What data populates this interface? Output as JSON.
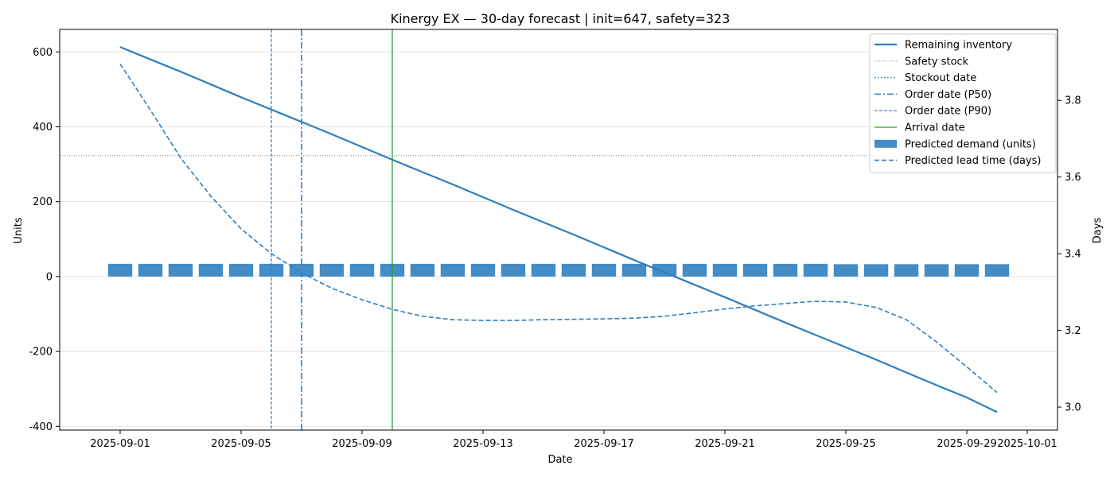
{
  "chart_data": {
    "type": "line",
    "title": "Kinergy EX — 30-day forecast | init=647, safety=323",
    "xlabel": "Date",
    "ylabel": "Units",
    "ylabel_right": "Days",
    "x_tick_labels": [
      "2025-09-01",
      "2025-09-05",
      "2025-09-09",
      "2025-09-13",
      "2025-09-17",
      "2025-09-21",
      "2025-09-25",
      "2025-09-29",
      "2025-10-01"
    ],
    "x_tick_dates": [
      "2025-09-01",
      "2025-09-05",
      "2025-09-09",
      "2025-09-13",
      "2025-09-17",
      "2025-09-21",
      "2025-09-25",
      "2025-09-29",
      "2025-10-01"
    ],
    "xlim": [
      "2025-08-30",
      "2025-10-02"
    ],
    "y_ticks": [
      -400,
      -200,
      0,
      200,
      400,
      600
    ],
    "ylim": [
      -410,
      660
    ],
    "y2_ticks": [
      3.0,
      3.2,
      3.4,
      3.6,
      3.8
    ],
    "y2lim": [
      2.94,
      3.985
    ],
    "grid": "horizontal",
    "legend_placement": "top-right",
    "dates": [
      "2025-09-01",
      "2025-09-02",
      "2025-09-03",
      "2025-09-04",
      "2025-09-05",
      "2025-09-06",
      "2025-09-07",
      "2025-09-08",
      "2025-09-09",
      "2025-09-10",
      "2025-09-11",
      "2025-09-12",
      "2025-09-13",
      "2025-09-14",
      "2025-09-15",
      "2025-09-16",
      "2025-09-17",
      "2025-09-18",
      "2025-09-19",
      "2025-09-20",
      "2025-09-21",
      "2025-09-22",
      "2025-09-23",
      "2025-09-24",
      "2025-09-25",
      "2025-09-26",
      "2025-09-27",
      "2025-09-28",
      "2025-09-29",
      "2025-09-30"
    ],
    "safety_stock": 323,
    "series": [
      {
        "name": "Remaining inventory",
        "kind": "line",
        "axis": "left",
        "color": "#2f7fbf",
        "values": [
          613,
          580,
          547,
          513,
          479,
          446,
          413,
          380,
          346,
          312,
          279,
          246,
          212,
          178,
          145,
          112,
          78,
          44,
          11,
          -22,
          -55,
          -89,
          -123,
          -156,
          -189,
          -222,
          -256,
          -290,
          -323,
          -362
        ]
      },
      {
        "name": "Predicted demand (units)",
        "kind": "bar",
        "axis": "left",
        "color": "#2f7fbf",
        "values": [
          34,
          34,
          34,
          34,
          34,
          34,
          34,
          34,
          34,
          34,
          34,
          34,
          34,
          34,
          34,
          34,
          34,
          34,
          34,
          34,
          34,
          34,
          34,
          34,
          33,
          33,
          33,
          33,
          33,
          33
        ]
      },
      {
        "name": "Predicted lead time (days)",
        "kind": "line",
        "axis": "right",
        "color": "#2f7fbf",
        "values": [
          3.895,
          3.775,
          3.65,
          3.55,
          3.465,
          3.4,
          3.35,
          3.31,
          3.28,
          3.255,
          3.237,
          3.228,
          3.226,
          3.226,
          3.228,
          3.229,
          3.23,
          3.232,
          3.237,
          3.246,
          3.256,
          3.264,
          3.27,
          3.276,
          3.274,
          3.26,
          3.228,
          3.17,
          3.105,
          3.038
        ]
      }
    ],
    "markers": [
      {
        "name": "Safety stock",
        "kind": "hline",
        "value": 323,
        "color": "#888888"
      },
      {
        "name": "Stockout date",
        "kind": "vline",
        "color": "#2f7fbf"
      },
      {
        "name": "Order date (P50)",
        "kind": "vline",
        "date": "2025-09-07",
        "color": "#2f7fbf"
      },
      {
        "name": "Order date (P90)",
        "kind": "vline",
        "date": "2025-09-06",
        "color": "#2f7fbf"
      },
      {
        "name": "Arrival date",
        "kind": "vline",
        "date": "2025-09-10",
        "color": "#2ca02c"
      }
    ],
    "legend": [
      "Remaining inventory",
      "Safety stock",
      "Stockout date",
      "Order date (P50)",
      "Order date (P90)",
      "Arrival date",
      "Predicted demand (units)",
      "Predicted lead time (days)"
    ]
  }
}
